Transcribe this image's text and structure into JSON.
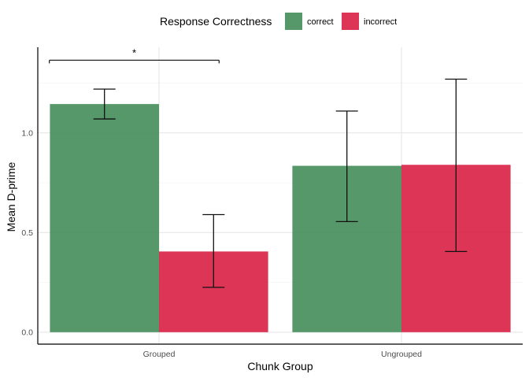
{
  "chart_data": {
    "type": "bar",
    "title": "",
    "xlabel": "Chunk Group",
    "ylabel": "Mean D-prime",
    "categories": [
      "Grouped",
      "Ungrouped"
    ],
    "ylim": [
      -0.06,
      1.43
    ],
    "yticks": [
      "0.0",
      "0.5",
      "1.0"
    ],
    "grid": true,
    "legend": {
      "title": "Response Correctness",
      "position": "top"
    },
    "series": [
      {
        "name": "correct",
        "color": "#3f8a55",
        "values": [
          1.145,
          0.835
        ],
        "error_low": [
          1.07,
          0.555
        ],
        "error_high": [
          1.22,
          1.11
        ]
      },
      {
        "name": "incorrect",
        "color": "#d7193f",
        "values": [
          0.405,
          0.84
        ],
        "error_low": [
          0.225,
          0.405
        ],
        "error_high": [
          0.59,
          1.27
        ]
      }
    ],
    "annotations": [
      {
        "text": "*",
        "category": "Grouped",
        "y": 1.365
      }
    ]
  }
}
